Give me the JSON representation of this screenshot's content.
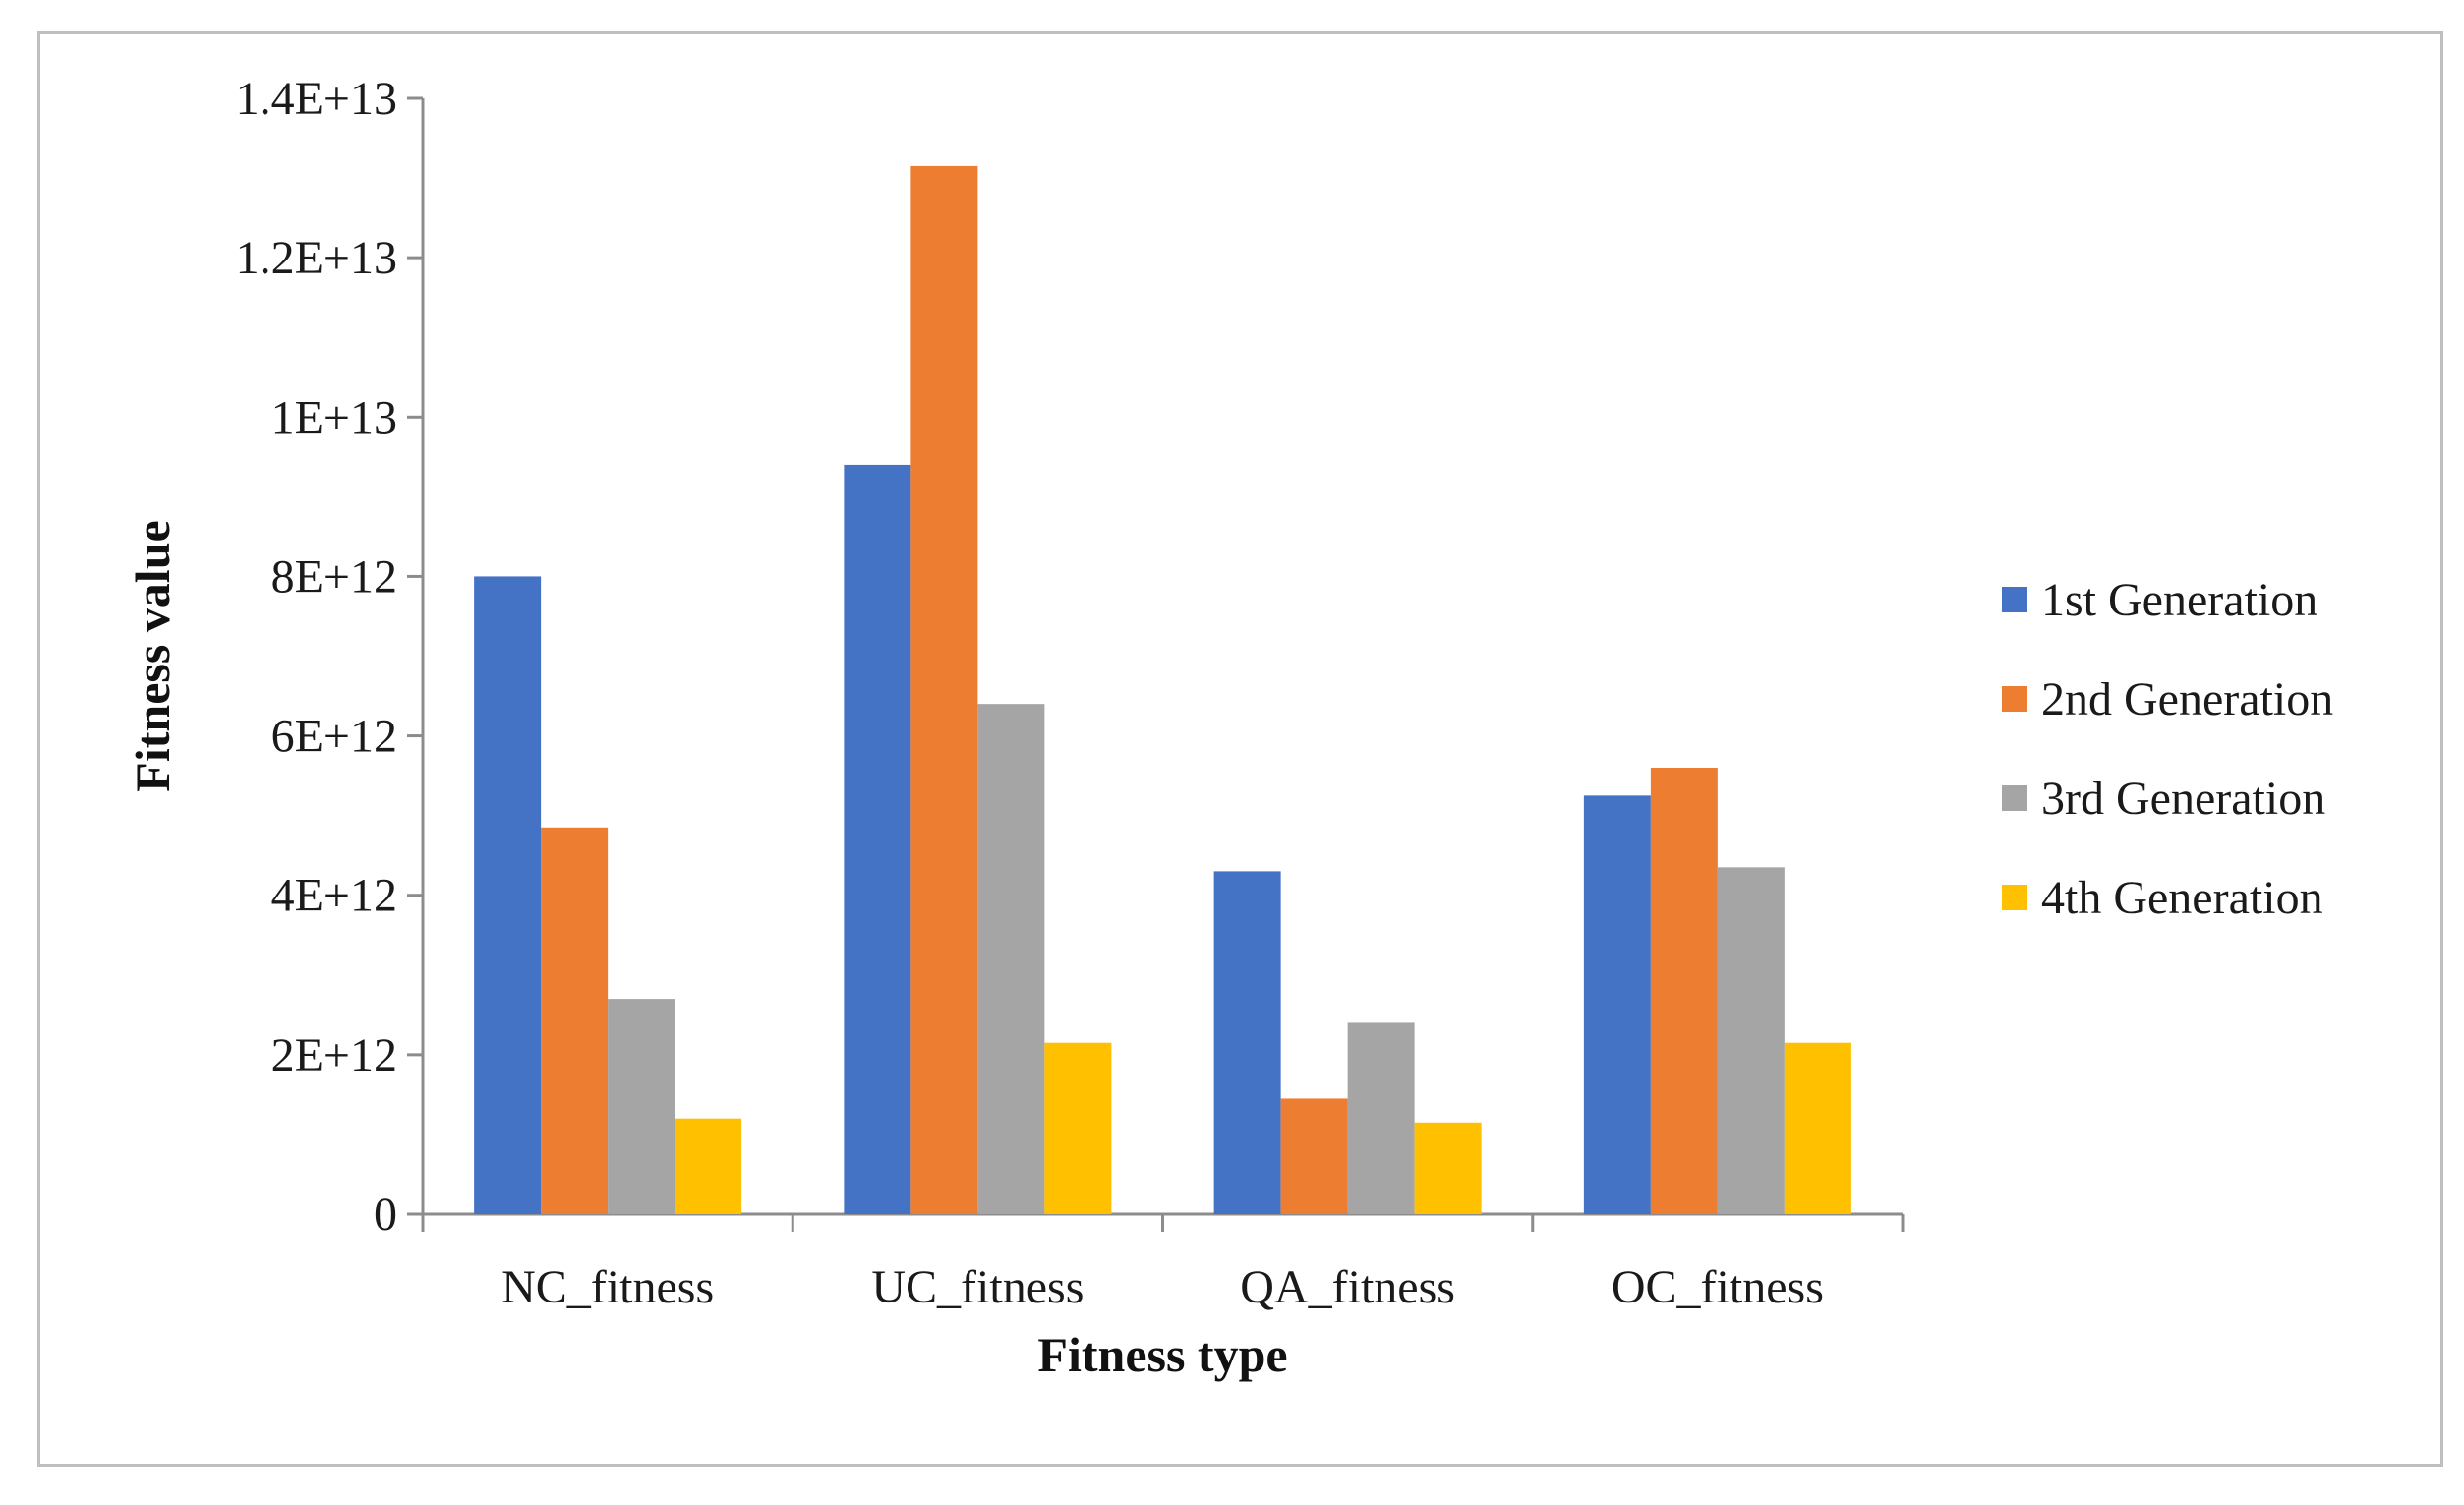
{
  "chart_data": {
    "type": "bar",
    "title": "",
    "xlabel": "Fitness type",
    "ylabel": "Fitness value",
    "categories": [
      "NC_fitness",
      "UC_fitness",
      "QA_fitness",
      "OC_fitness"
    ],
    "series": [
      {
        "name": "1st Generation",
        "color": "#4472c4",
        "values": [
          8000000000000.0,
          9400000000000.0,
          4300000000000.0,
          5250000000000.0
        ]
      },
      {
        "name": "2nd Generation",
        "color": "#ed7d31",
        "values": [
          4850000000000.0,
          13150000000000.0,
          1450000000000.0,
          5600000000000.0
        ]
      },
      {
        "name": "3rd Generation",
        "color": "#a5a5a5",
        "values": [
          2700000000000.0,
          6400000000000.0,
          2400000000000.0,
          4350000000000.0
        ]
      },
      {
        "name": "4th Generation",
        "color": "#ffc000",
        "values": [
          1200000000000.0,
          2150000000000.0,
          1150000000000.0,
          2150000000000.0
        ]
      }
    ],
    "ylim": [
      0,
      14000000000000.0
    ],
    "yticks": [
      {
        "value": 0,
        "label": "0"
      },
      {
        "value": 2000000000000.0,
        "label": "2E+12"
      },
      {
        "value": 4000000000000.0,
        "label": "4E+12"
      },
      {
        "value": 6000000000000.0,
        "label": "6E+12"
      },
      {
        "value": 8000000000000.0,
        "label": "8E+12"
      },
      {
        "value": 10000000000000.0,
        "label": "1E+13"
      },
      {
        "value": 12000000000000.0,
        "label": "1.2E+13"
      },
      {
        "value": 14000000000000.0,
        "label": "1.4E+13"
      }
    ],
    "grid": false,
    "legend_position": "right"
  }
}
